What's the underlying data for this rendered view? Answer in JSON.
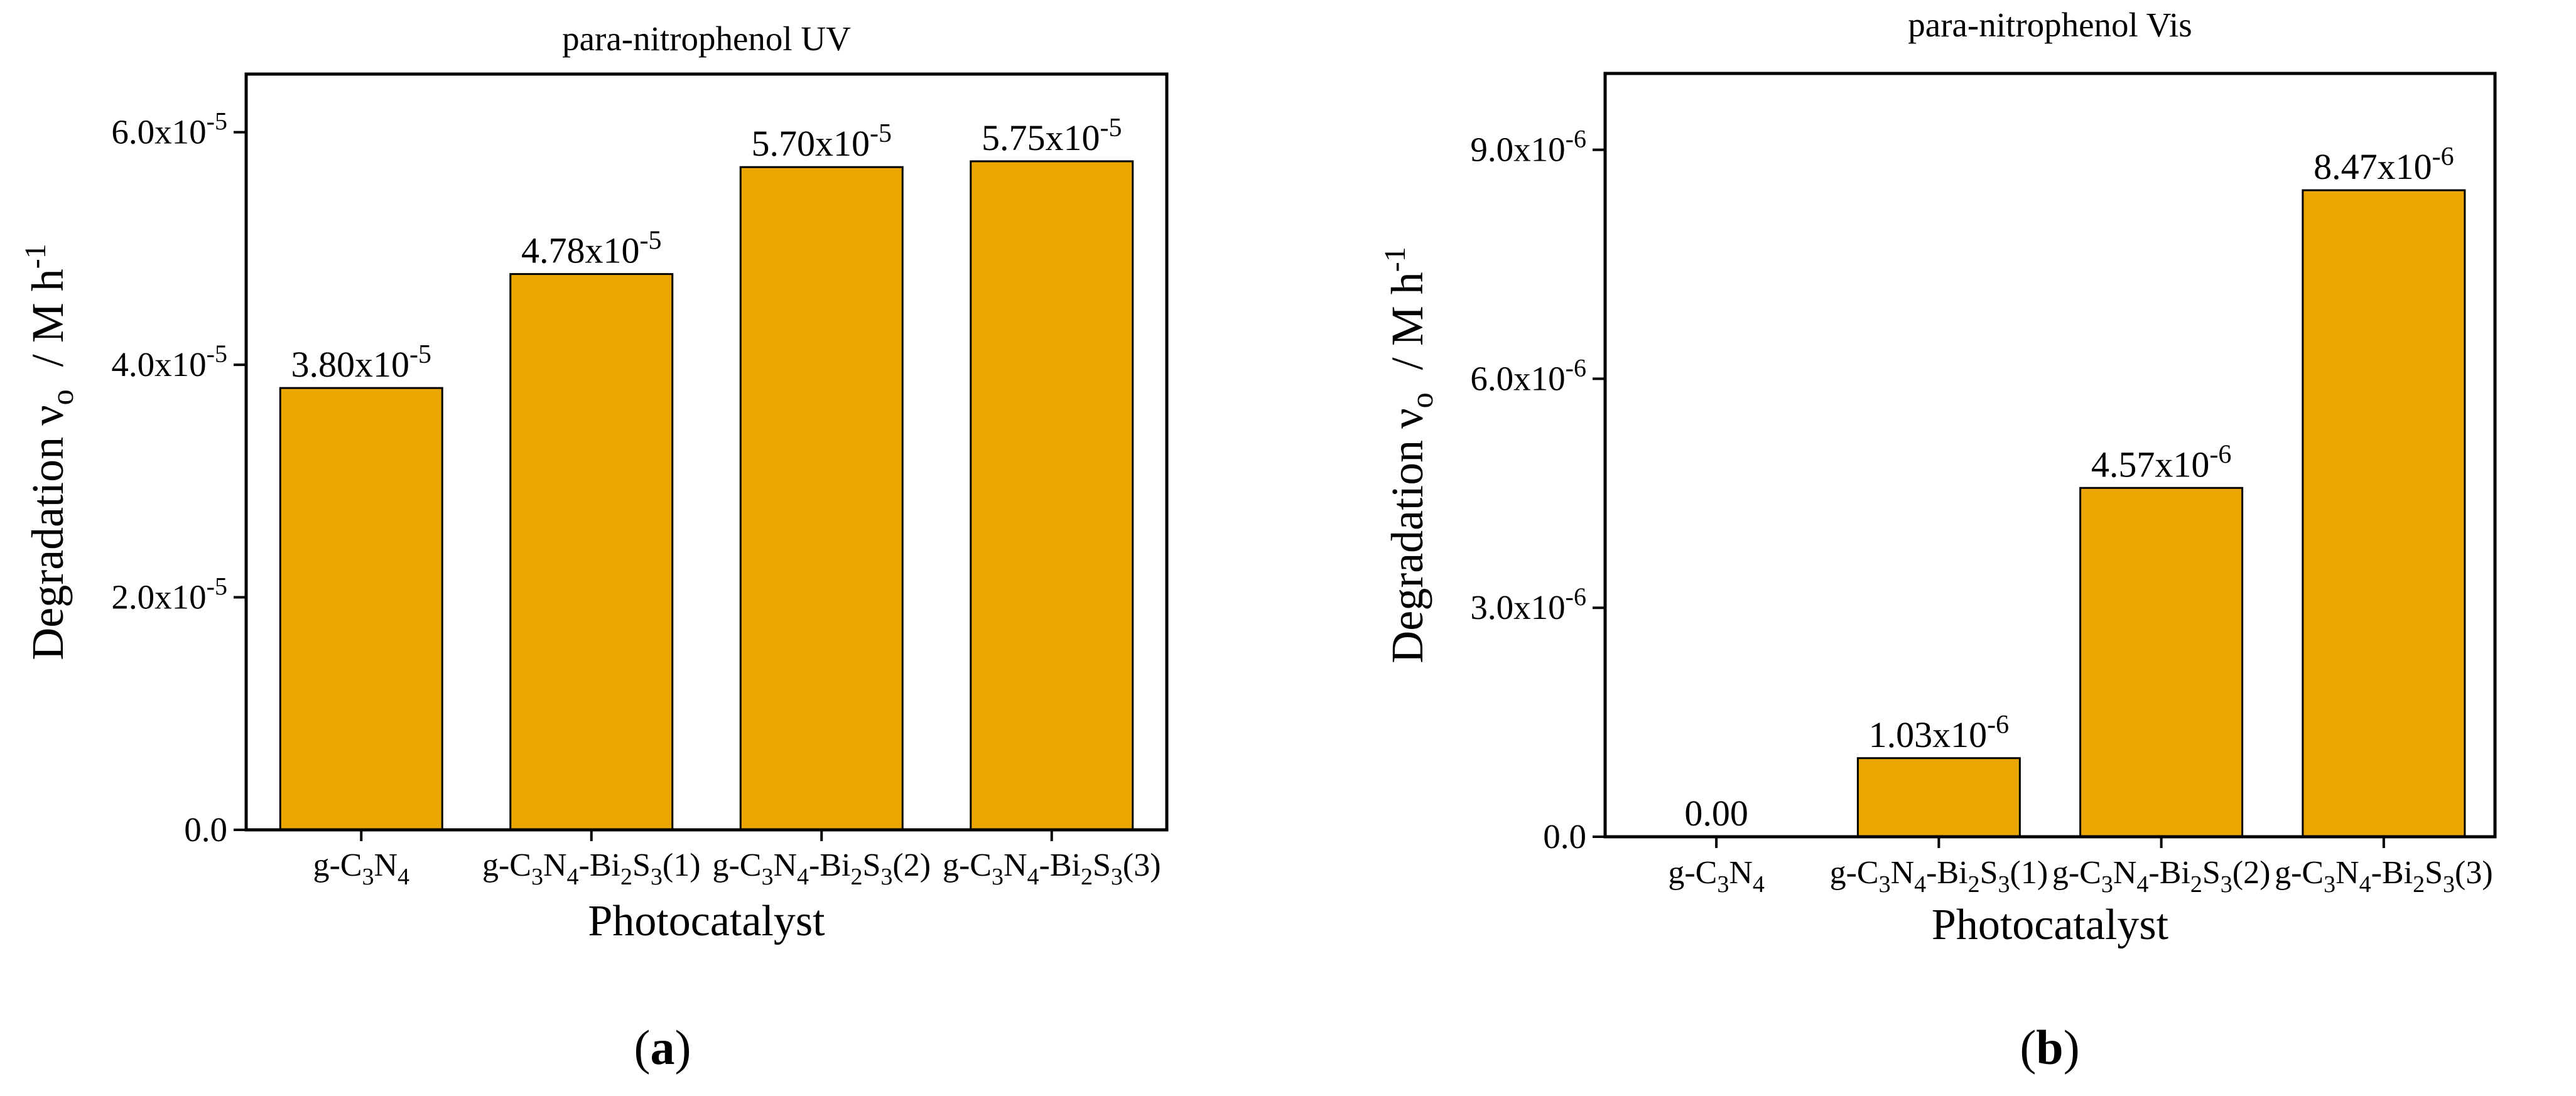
{
  "figure": {
    "panel_a_label": "a",
    "panel_b_label": "b"
  },
  "colors": {
    "bar_fill": "#EBA600",
    "axis": "#000000",
    "background": "#ffffff"
  },
  "chart_data": [
    {
      "type": "bar",
      "title": "para-nitrophenol UV",
      "xlabel": "Photocatalyst",
      "ylabel_main": "Degradation ν",
      "ylabel_sub": "o",
      "ylabel_unit": "/ M h",
      "ylabel_unit_sup": "-1",
      "categories": [
        "g-C3N4",
        "g-C3N4-Bi2S3(1)",
        "g-C3N4-Bi2S3(2)",
        "g-C3N4-Bi2S3(3)"
      ],
      "values": [
        3.8e-05,
        4.78e-05,
        5.7e-05,
        5.75e-05
      ],
      "value_labels": [
        {
          "mantissa": "3.80x10",
          "exp": "-5"
        },
        {
          "mantissa": "4.78x10",
          "exp": "-5"
        },
        {
          "mantissa": "5.70x10",
          "exp": "-5"
        },
        {
          "mantissa": "5.75x10",
          "exp": "-5"
        }
      ],
      "ylim": [
        0,
        6.5e-05
      ],
      "yticks": [
        {
          "value": 0,
          "mantissa": "0.0",
          "exp": ""
        },
        {
          "value": 2e-05,
          "mantissa": "2.0x10",
          "exp": "-5"
        },
        {
          "value": 4e-05,
          "mantissa": "4.0x10",
          "exp": "-5"
        },
        {
          "value": 6e-05,
          "mantissa": "6.0x10",
          "exp": "-5"
        }
      ],
      "grid": false,
      "legend": "none"
    },
    {
      "type": "bar",
      "title": "para-nitrophenol Vis",
      "xlabel": "Photocatalyst",
      "ylabel_main": "Degradation ν",
      "ylabel_sub": "o",
      "ylabel_unit": "/ M h",
      "ylabel_unit_sup": "-1",
      "categories": [
        "g-C3N4",
        "g-C3N4-Bi2S3(1)",
        "g-C3N4-Bi2S3(2)",
        "g-C3N4-Bi2S3(3)"
      ],
      "values": [
        0,
        1.03e-06,
        4.57e-06,
        8.47e-06
      ],
      "value_labels": [
        {
          "mantissa": "0.00",
          "exp": ""
        },
        {
          "mantissa": "1.03x10",
          "exp": "-6"
        },
        {
          "mantissa": "4.57x10",
          "exp": "-6"
        },
        {
          "mantissa": "8.47x10",
          "exp": "-6"
        }
      ],
      "ylim": [
        0,
        1e-05
      ],
      "yticks": [
        {
          "value": 0,
          "mantissa": "0.0",
          "exp": ""
        },
        {
          "value": 3e-06,
          "mantissa": "3.0x10",
          "exp": "-6"
        },
        {
          "value": 6e-06,
          "mantissa": "6.0x10",
          "exp": "-6"
        },
        {
          "value": 9e-06,
          "mantissa": "9.0x10",
          "exp": "-6"
        }
      ],
      "grid": false,
      "legend": "none"
    }
  ]
}
